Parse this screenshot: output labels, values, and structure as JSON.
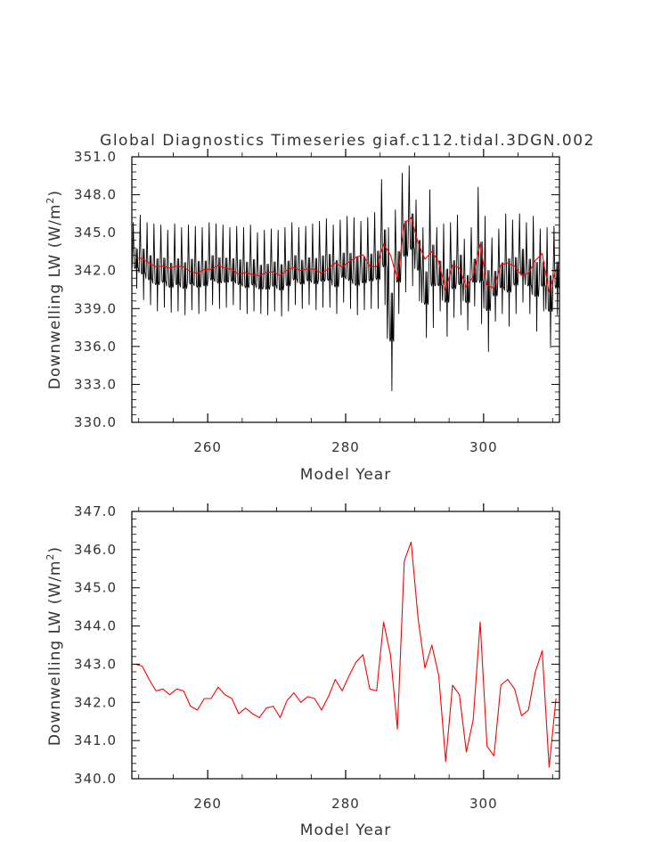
{
  "chart_data": [
    {
      "type": "line",
      "title": "Global Diagnostics Timeseries giaf.c112.tidal.3DGN.002",
      "xlabel": "Model Year",
      "ylabel_main": "Downwelling LW (W/m",
      "ylabel_sup": "2",
      "ylabel_end": ")",
      "xlim": [
        249,
        311
      ],
      "ylim": [
        330.0,
        351.0
      ],
      "x_ticks": [
        260,
        280,
        300
      ],
      "x_tick_labels": [
        "260",
        "280",
        "300"
      ],
      "y_ticks": [
        330,
        333,
        336,
        339,
        342,
        345,
        348,
        351
      ],
      "y_tick_labels": [
        "330.0",
        "333.0",
        "336.0",
        "339.0",
        "342.0",
        "345.0",
        "348.0",
        "351.0"
      ],
      "grid": false,
      "series": [
        {
          "color": "#000000",
          "monthly_envelope_start_year": 249,
          "monthly_envelope_min": [
            340.6,
            339.7,
            339.3,
            338.8,
            339.1,
            338.7,
            338.8,
            338.5,
            338.9,
            338.6,
            338.8,
            339.3,
            339.0,
            339.1,
            339.3,
            338.9,
            338.6,
            338.8,
            338.6,
            338.5,
            338.8,
            338.4,
            338.8,
            339.3,
            339.0,
            339.3,
            338.9,
            339.1,
            339.1,
            338.6,
            339.5,
            339.0,
            338.5,
            338.9,
            339.0,
            339.0,
            339.3,
            332.5,
            338.6,
            340.3,
            340.8,
            339.6,
            336.7,
            337.5,
            338.8,
            336.8,
            338.3,
            338.5,
            337.3,
            339.2,
            337.8,
            335.6,
            338.0,
            338.6,
            337.6,
            338.6,
            339.5,
            338.6,
            337.2,
            338.8,
            335.9,
            338.5,
            338.9
          ],
          "monthly_envelope_max": [
            345.8,
            346.4,
            345.8,
            345.7,
            345.6,
            345.2,
            345.7,
            345.4,
            345.6,
            345.5,
            345.4,
            345.8,
            345.7,
            345.6,
            345.4,
            345.5,
            345.4,
            345.6,
            345.0,
            345.2,
            345.3,
            345.2,
            345.4,
            345.8,
            345.4,
            345.5,
            345.7,
            345.9,
            346.1,
            345.6,
            346.0,
            346.3,
            346.2,
            345.9,
            346.2,
            346.6,
            349.2,
            345.4,
            346.8,
            349.7,
            350.3,
            347.6,
            345.4,
            348.4,
            345.4,
            345.7,
            345.8,
            346.4,
            344.5,
            345.4,
            348.6,
            346.3,
            344.6,
            345.3,
            346.5,
            346.0,
            346.5,
            345.8,
            346.3,
            345.3,
            345.4,
            345.5,
            346.8
          ]
        },
        {
          "color": "#ff0000",
          "x": [
            249.5,
            250.5,
            251.5,
            252.5,
            253.5,
            254.5,
            255.5,
            256.5,
            257.5,
            258.5,
            259.5,
            260.5,
            261.5,
            262.5,
            263.5,
            264.5,
            265.5,
            266.5,
            267.5,
            268.5,
            269.5,
            270.5,
            271.5,
            272.5,
            273.5,
            274.5,
            275.5,
            276.5,
            277.5,
            278.5,
            279.5,
            280.5,
            281.5,
            282.5,
            283.5,
            284.5,
            285.5,
            286.5,
            287.5,
            288.5,
            289.5,
            290.5,
            291.5,
            292.5,
            293.5,
            294.5,
            295.5,
            296.5,
            297.5,
            298.5,
            299.5,
            300.5,
            301.5,
            302.5,
            303.5,
            304.5,
            305.5,
            306.5,
            307.5,
            308.5,
            309.5,
            310.5
          ],
          "y": [
            343.0,
            342.95,
            342.6,
            342.3,
            342.35,
            342.2,
            342.35,
            342.3,
            341.9,
            341.8,
            342.1,
            342.1,
            342.4,
            342.2,
            342.1,
            341.7,
            341.85,
            341.7,
            341.6,
            341.85,
            341.9,
            341.6,
            342.05,
            342.25,
            342.0,
            342.15,
            342.1,
            341.8,
            342.15,
            342.6,
            342.3,
            342.7,
            343.05,
            343.25,
            342.35,
            342.3,
            344.1,
            343.25,
            341.3,
            345.7,
            346.2,
            344.2,
            342.9,
            343.5,
            342.7,
            340.45,
            342.45,
            342.2,
            340.7,
            341.55,
            344.1,
            340.85,
            340.6,
            342.45,
            342.6,
            342.35,
            341.65,
            341.8,
            342.8,
            343.35,
            340.3,
            342.1
          ]
        }
      ]
    },
    {
      "type": "line",
      "title": "",
      "xlabel": "Model Year",
      "ylabel_main": "Downwelling LW (W/m",
      "ylabel_sup": "2",
      "ylabel_end": ")",
      "xlim": [
        249,
        311
      ],
      "ylim": [
        340.0,
        347.0
      ],
      "x_ticks": [
        260,
        280,
        300
      ],
      "x_tick_labels": [
        "260",
        "280",
        "300"
      ],
      "y_ticks": [
        340,
        341,
        342,
        343,
        344,
        345,
        346,
        347
      ],
      "y_tick_labels": [
        "340.0",
        "341.0",
        "342.0",
        "343.0",
        "344.0",
        "345.0",
        "346.0",
        "347.0"
      ],
      "grid": false,
      "series": [
        {
          "color": "#ff0000",
          "x": [
            249.5,
            250.5,
            251.5,
            252.5,
            253.5,
            254.5,
            255.5,
            256.5,
            257.5,
            258.5,
            259.5,
            260.5,
            261.5,
            262.5,
            263.5,
            264.5,
            265.5,
            266.5,
            267.5,
            268.5,
            269.5,
            270.5,
            271.5,
            272.5,
            273.5,
            274.5,
            275.5,
            276.5,
            277.5,
            278.5,
            279.5,
            280.5,
            281.5,
            282.5,
            283.5,
            284.5,
            285.5,
            286.5,
            287.5,
            288.5,
            289.5,
            290.5,
            291.5,
            292.5,
            293.5,
            294.5,
            295.5,
            296.5,
            297.5,
            298.5,
            299.5,
            300.5,
            301.5,
            302.5,
            303.5,
            304.5,
            305.5,
            306.5,
            307.5,
            308.5,
            309.5,
            310.5
          ],
          "y": [
            343.0,
            342.95,
            342.6,
            342.3,
            342.35,
            342.2,
            342.35,
            342.3,
            341.9,
            341.8,
            342.1,
            342.1,
            342.4,
            342.2,
            342.1,
            341.7,
            341.85,
            341.7,
            341.6,
            341.85,
            341.9,
            341.6,
            342.05,
            342.25,
            342.0,
            342.15,
            342.1,
            341.8,
            342.15,
            342.6,
            342.3,
            342.7,
            343.05,
            343.25,
            342.35,
            342.3,
            344.1,
            343.25,
            341.3,
            345.7,
            346.2,
            344.2,
            342.9,
            343.5,
            342.7,
            340.45,
            342.45,
            342.2,
            340.7,
            341.55,
            344.1,
            340.85,
            340.6,
            342.45,
            342.6,
            342.35,
            341.65,
            341.8,
            342.8,
            343.35,
            340.3,
            342.1
          ]
        }
      ]
    }
  ]
}
